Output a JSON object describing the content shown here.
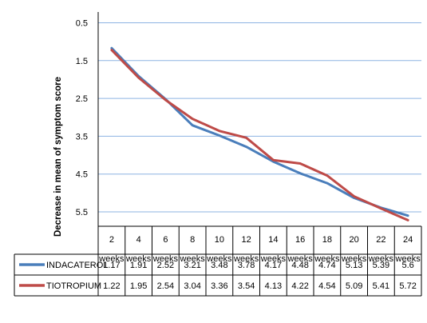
{
  "chart_data": {
    "type": "line",
    "ylabel": "Decrease in mean of symptom score",
    "y_reversed": true,
    "ylim": [
      0.5,
      6.2
    ],
    "yticks": [
      "0.5",
      "1.5",
      "2.5",
      "3.5",
      "4.5",
      "5.5"
    ],
    "grid": true,
    "legend": "data table rows",
    "categories": [
      {
        "num": "2",
        "unit": "weeks"
      },
      {
        "num": "4",
        "unit": "weeks"
      },
      {
        "num": "6",
        "unit": "weeks"
      },
      {
        "num": "8",
        "unit": "weeks"
      },
      {
        "num": "10",
        "unit": "weeks"
      },
      {
        "num": "12",
        "unit": "weeks"
      },
      {
        "num": "14",
        "unit": "weeks"
      },
      {
        "num": "16",
        "unit": "weeks"
      },
      {
        "num": "18",
        "unit": "weeks"
      },
      {
        "num": "20",
        "unit": "weeks"
      },
      {
        "num": "22",
        "unit": "weeks"
      },
      {
        "num": "24",
        "unit": "weeks"
      }
    ],
    "series": [
      {
        "name": "INDACATEROL",
        "color": "#4a7ebb",
        "values": [
          1.17,
          1.91,
          2.52,
          3.21,
          3.48,
          3.78,
          4.17,
          4.48,
          4.74,
          5.13,
          5.39,
          5.6
        ],
        "labels": [
          "1.17",
          "1.91",
          "2.52",
          "3.21",
          "3.48",
          "3.78",
          "4.17",
          "4.48",
          "4.74",
          "5.13",
          "5.39",
          "5.6"
        ]
      },
      {
        "name": "TIOTROPIUM",
        "color": "#be4b48",
        "values": [
          1.22,
          1.95,
          2.54,
          3.04,
          3.36,
          3.54,
          4.13,
          4.22,
          4.54,
          5.09,
          5.41,
          5.72
        ],
        "labels": [
          "1.22",
          "1.95",
          "2.54",
          "3.04",
          "3.36",
          "3.54",
          "4.13",
          "4.22",
          "4.54",
          "5.09",
          "5.41",
          "5.72"
        ]
      }
    ]
  }
}
